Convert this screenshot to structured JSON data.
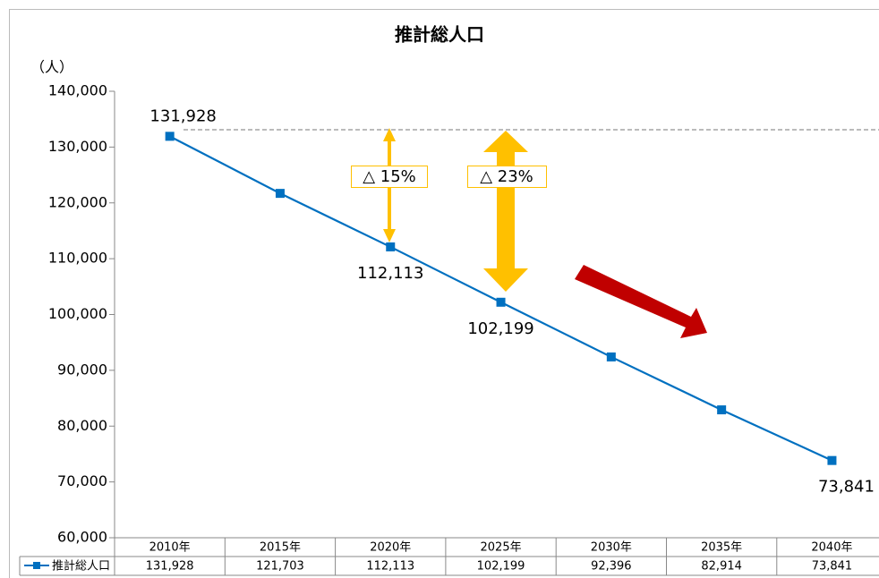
{
  "chart_data": {
    "type": "line",
    "title": "推計総人口",
    "y_label": "（人）",
    "categories": [
      "2010年",
      "2015年",
      "2020年",
      "2025年",
      "2030年",
      "2035年",
      "2040年"
    ],
    "series": [
      {
        "name": "推計総人口",
        "color": "#0070c0",
        "values": [
          131928,
          121703,
          112113,
          102199,
          92396,
          82914,
          73841
        ],
        "value_labels": [
          "131,928",
          "121,703",
          "112,113",
          "102,199",
          "92,396",
          "82,914",
          "73,841"
        ]
      }
    ],
    "labeled_points": [
      0,
      2,
      3,
      6
    ],
    "ylim": [
      60000,
      140000
    ],
    "yticks": [
      {
        "value": 60000,
        "label": "60,000"
      },
      {
        "value": 70000,
        "label": "70,000"
      },
      {
        "value": 80000,
        "label": "80,000"
      },
      {
        "value": 90000,
        "label": "90,000"
      },
      {
        "value": 100000,
        "label": "100,000"
      },
      {
        "value": 110000,
        "label": "110,000"
      },
      {
        "value": 120000,
        "label": "120,000"
      },
      {
        "value": 130000,
        "label": "130,000"
      },
      {
        "value": 140000,
        "label": "140,000"
      }
    ],
    "annotations": [
      "△ 15%",
      "△ 23%"
    ]
  }
}
